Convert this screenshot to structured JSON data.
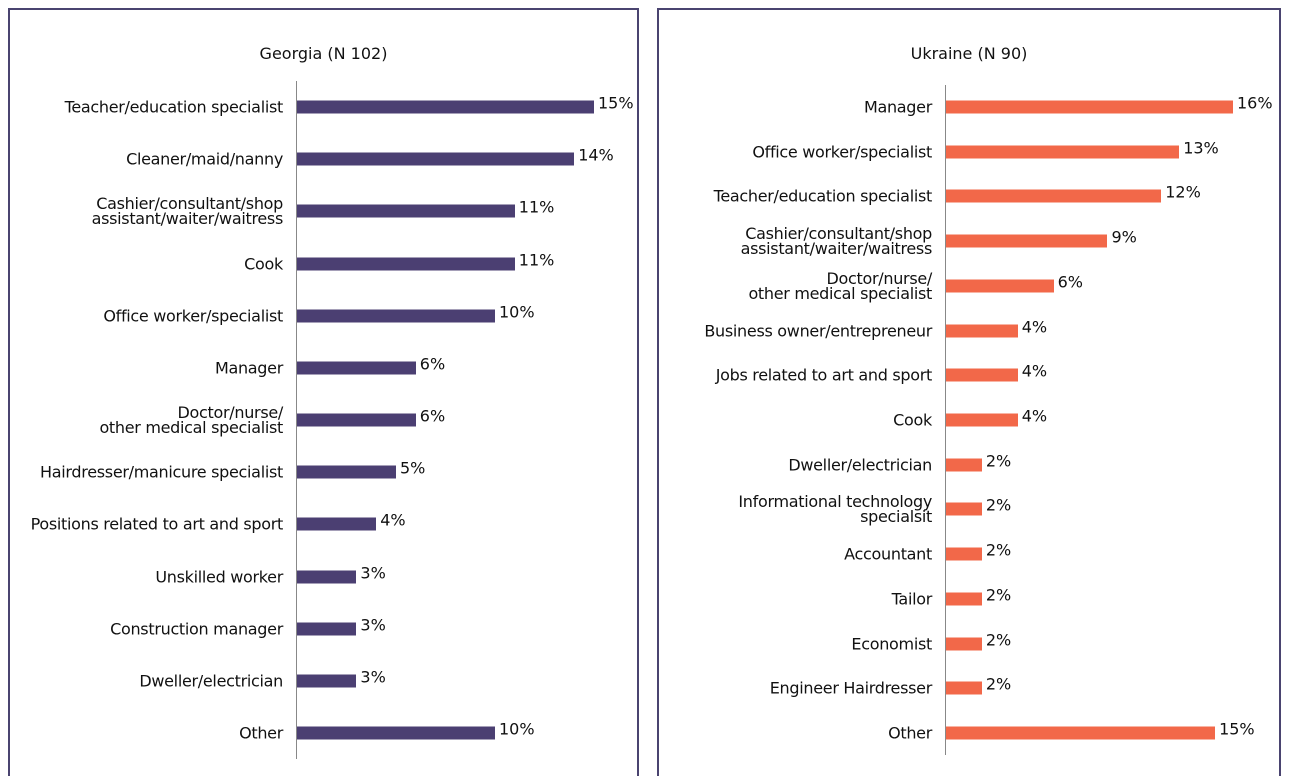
{
  "chart_data": [
    {
      "type": "bar",
      "orientation": "horizontal",
      "title": "Georgia (N 102)",
      "color": "#4b3f72",
      "categories": [
        "Teacher/education specialist",
        "Cleaner/maid/nanny",
        "Cashier/consultant/shop\nassistant/waiter/waitress",
        "Cook",
        "Office worker/specialist",
        "Manager",
        "Doctor/nurse/\nother medical specialist",
        "Hairdresser/manicure specialist",
        "Positions related to art and sport",
        "Unskilled worker",
        "Construction manager",
        "Dweller/electrician",
        "Other"
      ],
      "values": [
        15,
        14,
        11,
        11,
        10,
        6,
        6,
        5,
        4,
        3,
        3,
        3,
        10
      ],
      "value_labels": [
        "15%",
        "14%",
        "11%",
        "11%",
        "10%",
        "6%",
        "6%",
        "5%",
        "4%",
        "3%",
        "3%",
        "3%",
        "10%"
      ]
    },
    {
      "type": "bar",
      "orientation": "horizontal",
      "title": "Ukraine (N 90)",
      "color": "#f26849",
      "categories": [
        "Manager",
        "Office worker/specialist",
        "Teacher/education specialist",
        "Cashier/consultant/shop\nassistant/waiter/waitress",
        "Doctor/nurse/\nother medical specialist",
        "Business owner/entrepreneur",
        "Jobs related to art and sport",
        "Cook",
        "Dweller/electrician",
        "Informational technology\nspecialsit",
        "Accountant",
        "Tailor",
        "Economist",
        "Engineer Hairdresser",
        "Other"
      ],
      "values": [
        16,
        13,
        12,
        9,
        6,
        4,
        4,
        4,
        2,
        2,
        2,
        2,
        2,
        2,
        15
      ],
      "value_labels": [
        "16%",
        "13%",
        "12%",
        "9%",
        "6%",
        "4%",
        "4%",
        "4%",
        "2%",
        "2%",
        "2%",
        "2%",
        "2%",
        "2%",
        "15%"
      ]
    }
  ]
}
